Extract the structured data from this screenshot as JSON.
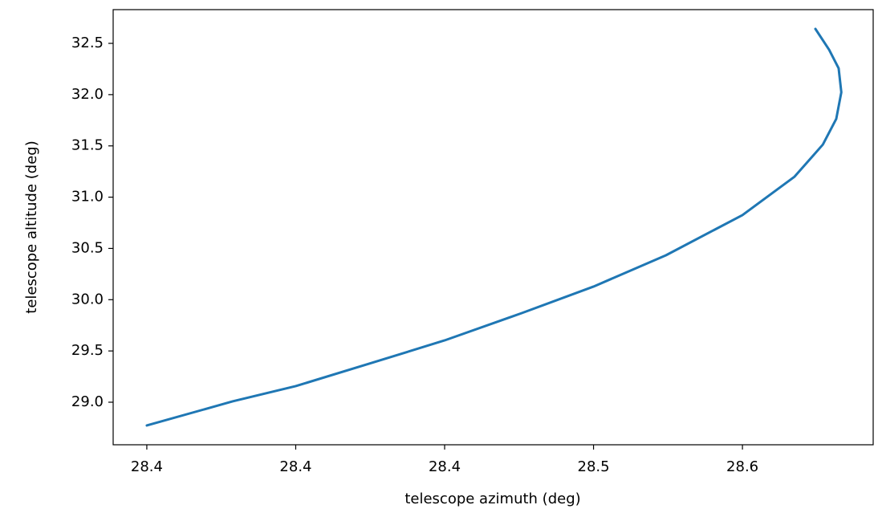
{
  "chart_data": {
    "type": "line",
    "xlabel": "telescope azimuth (deg)",
    "ylabel": "telescope altitude (deg)",
    "x": [
      28.35,
      28.3788,
      28.4,
      28.4247,
      28.45,
      28.4759,
      28.5,
      28.5243,
      28.55,
      28.5675,
      28.577,
      28.5815,
      28.5832,
      28.5823,
      28.5791,
      28.5745
    ],
    "values": [
      28.773,
      29.008,
      29.157,
      29.376,
      29.603,
      29.869,
      30.128,
      30.433,
      30.825,
      31.2,
      31.513,
      31.764,
      32.023,
      32.257,
      32.438,
      32.641
    ],
    "color": "#1f77b4",
    "xlim": [
      28.3387,
      28.5939
    ],
    "ylim": [
      28.585,
      32.829
    ],
    "xticks": [
      {
        "value": 28.35,
        "label": "28.4"
      },
      {
        "value": 28.4,
        "label": "28.4"
      },
      {
        "value": 28.45,
        "label": "28.4"
      },
      {
        "value": 28.5,
        "label": "28.5"
      },
      {
        "value": 28.55,
        "label": "28.6"
      }
    ],
    "yticks": [
      {
        "value": 29,
        "label": "29.0"
      },
      29.5,
      {
        "value": 30,
        "label": "30.0"
      },
      30.5,
      {
        "value": 31,
        "label": "31.0"
      },
      31.5,
      {
        "value": 32,
        "label": "32.0"
      },
      32.5
    ],
    "grid": false
  }
}
